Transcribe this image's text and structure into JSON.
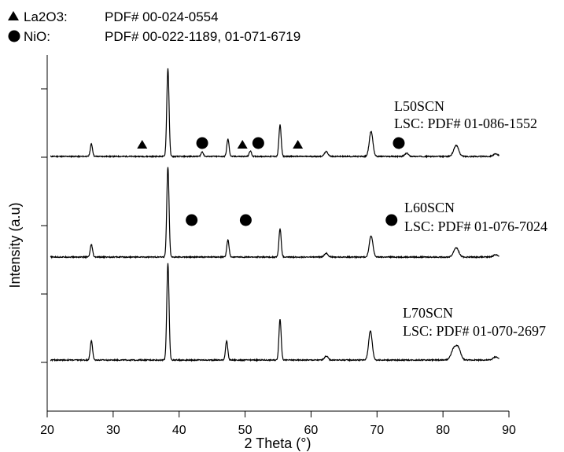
{
  "chart_data": {
    "type": "line",
    "xlabel": "2 Theta (°)",
    "ylabel": "Intensity (a.u)",
    "xlim": [
      20,
      90
    ],
    "xticks": [
      "20",
      "30",
      "40",
      "50",
      "60",
      "70",
      "80",
      "90"
    ],
    "legend": [
      {
        "marker": "triangle",
        "phase": "La2O3:",
        "ref": "PDF# 00-024-0554"
      },
      {
        "marker": "circle",
        "phase": "NiO:",
        "ref": "PDF# 00-022-1189, 01-071-6719"
      }
    ],
    "series": [
      {
        "name": "L50SCN",
        "annotation": "LSC: PDF# 01-086-1552",
        "peaks": [
          [
            26.7,
            16
          ],
          [
            38.3,
            112
          ],
          [
            43.5,
            6
          ],
          [
            47.4,
            22
          ],
          [
            50.8,
            7
          ],
          [
            55.3,
            40
          ],
          [
            62.3,
            6
          ],
          [
            69.1,
            32
          ],
          [
            74.5,
            4
          ],
          [
            82.0,
            14
          ],
          [
            88.0,
            3
          ]
        ],
        "triangles": [
          34.4,
          49.6,
          58.0
        ],
        "circles": [
          43.5,
          52.0,
          73.3
        ]
      },
      {
        "name": "L60SCN",
        "annotation": "LSC: PDF# 01-076-7024",
        "peaks": [
          [
            26.7,
            16
          ],
          [
            38.3,
            115
          ],
          [
            47.4,
            22
          ],
          [
            55.3,
            36
          ],
          [
            62.3,
            5
          ],
          [
            69.1,
            27
          ],
          [
            82.0,
            12
          ],
          [
            88.0,
            3
          ]
        ],
        "triangles": [],
        "circles": [
          41.9,
          50.1,
          72.2
        ]
      },
      {
        "name": "L70SCN",
        "annotation": "LSC: PDF# 01-070-2697",
        "peaks": [
          [
            26.7,
            25
          ],
          [
            38.3,
            123
          ],
          [
            47.2,
            24
          ],
          [
            55.3,
            52
          ],
          [
            62.3,
            5
          ],
          [
            69.0,
            37
          ],
          [
            81.6,
            13
          ],
          [
            82.3,
            15
          ],
          [
            88.0,
            4
          ]
        ],
        "triangles": [],
        "circles": []
      }
    ]
  }
}
